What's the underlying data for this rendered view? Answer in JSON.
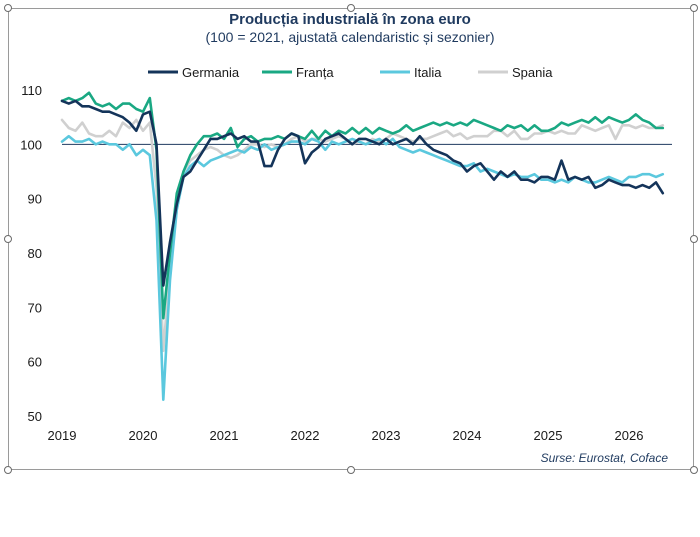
{
  "chart_data": {
    "type": "line",
    "title": "Producția industrială în zona euro",
    "subtitle": "(100 = 2021, ajustată calendaristic și sezonier)",
    "source": "Surse: Eurostat, Coface",
    "xlabel": "",
    "ylabel": "",
    "x_tick_labels": [
      "2019",
      "2020",
      "2021",
      "2022",
      "2023",
      "2024",
      "2025",
      "2026"
    ],
    "y_ticks": [
      50,
      60,
      70,
      80,
      90,
      100,
      110
    ],
    "ylim": [
      50,
      112
    ],
    "reference_line": 100,
    "grid": false,
    "legend_position": "top",
    "x_start": "2019-01",
    "series": [
      {
        "name": "Germania",
        "color": "#14345a",
        "values": [
          108,
          107.5,
          108,
          107,
          107,
          106.5,
          106,
          106,
          105.5,
          105,
          104,
          102.5,
          105.5,
          106,
          100,
          74,
          82,
          89,
          94,
          95,
          97,
          99,
          101,
          101,
          101.5,
          102,
          101,
          101.5,
          100.5,
          100.5,
          96,
          96,
          99,
          101,
          102,
          101.5,
          96.5,
          98.5,
          99.5,
          101,
          101.5,
          102,
          101,
          100,
          101,
          101,
          100.5,
          100,
          101,
          100,
          100.5,
          101,
          100,
          101.5,
          100,
          99,
          98.5,
          98,
          97,
          96.5,
          95,
          96,
          96.5,
          95,
          93.5,
          95,
          94,
          95,
          93.5,
          93.5,
          93,
          94,
          94,
          93.5,
          97,
          93.5,
          94,
          93.5,
          94,
          92,
          92.5,
          93.5,
          93,
          92.5,
          92.5,
          92,
          92.5,
          92,
          93,
          91
        ]
      },
      {
        "name": "Franța",
        "color": "#1aa883",
        "values": [
          108,
          108.5,
          108,
          108.5,
          109.5,
          107.5,
          107,
          107.5,
          106.5,
          107.5,
          107.5,
          106.5,
          106,
          108.5,
          99,
          68,
          80,
          91,
          95,
          98,
          100,
          101.5,
          101.5,
          102,
          101,
          103,
          99.5,
          101,
          101.5,
          100.5,
          101,
          101,
          101.5,
          101,
          102,
          101.5,
          101,
          102.5,
          101,
          102.5,
          101.5,
          102.5,
          102,
          103,
          102,
          103,
          102,
          103,
          102.5,
          102,
          102.5,
          103.5,
          102.5,
          103,
          103.5,
          104,
          103.5,
          104,
          103.5,
          104,
          103.5,
          104.5,
          104,
          103.5,
          103,
          102.5,
          103.5,
          103,
          103.5,
          102.5,
          103.5,
          102.5,
          102.5,
          103,
          104,
          103.5,
          104,
          104.5,
          104,
          105,
          104,
          105,
          104.5,
          104,
          104.5,
          105.5,
          104.5,
          104,
          103,
          103
        ]
      },
      {
        "name": "Italia",
        "color": "#5bc8de",
        "values": [
          100.5,
          101.5,
          100.5,
          100.5,
          101,
          100,
          100.5,
          100,
          100,
          99,
          100,
          98,
          99,
          98,
          86,
          53,
          75,
          88,
          94,
          96,
          97,
          96,
          97,
          97.5,
          98,
          98.5,
          99,
          98.5,
          99.5,
          99,
          100,
          99,
          99.5,
          100,
          100.5,
          100.5,
          100,
          101,
          100.5,
          99,
          100.5,
          100,
          100.5,
          101,
          100.5,
          100,
          100.5,
          101,
          100,
          101,
          99.5,
          99,
          98.5,
          99,
          98.5,
          98,
          97.5,
          97,
          96.5,
          96,
          96,
          96.5,
          95,
          95.5,
          95,
          94.5,
          94,
          94.5,
          94,
          94,
          94.5,
          93.5,
          93.5,
          93,
          93.5,
          93,
          94,
          93.5,
          93,
          93,
          93.5,
          94,
          93.5,
          93,
          94,
          94,
          94.5,
          94.5,
          94,
          94.5
        ]
      },
      {
        "name": "Spania",
        "color": "#d0d0d0",
        "values": [
          104.5,
          103,
          102.5,
          104,
          102,
          101.5,
          101.5,
          102.5,
          101.5,
          104,
          103,
          104.5,
          102.5,
          104,
          92,
          62,
          77,
          88,
          95,
          97,
          98,
          99,
          99.5,
          99,
          98,
          97.5,
          98,
          99,
          100,
          100,
          99.5,
          100,
          99.5,
          100,
          101,
          101.5,
          100.5,
          101,
          101,
          100.5,
          101,
          101.5,
          101,
          100,
          100.5,
          100,
          101,
          100.5,
          101,
          102,
          101.5,
          101,
          100.5,
          101,
          101,
          101.5,
          102,
          102.5,
          101.5,
          102,
          101,
          101.5,
          101.5,
          101.5,
          102.5,
          102.5,
          101.5,
          102.5,
          101,
          101,
          102,
          102,
          102.5,
          102,
          102.5,
          102,
          102,
          103.5,
          103,
          102.5,
          103,
          103.5,
          101,
          103.5,
          103.5,
          103,
          103.5,
          103,
          103,
          103.5
        ]
      }
    ]
  }
}
